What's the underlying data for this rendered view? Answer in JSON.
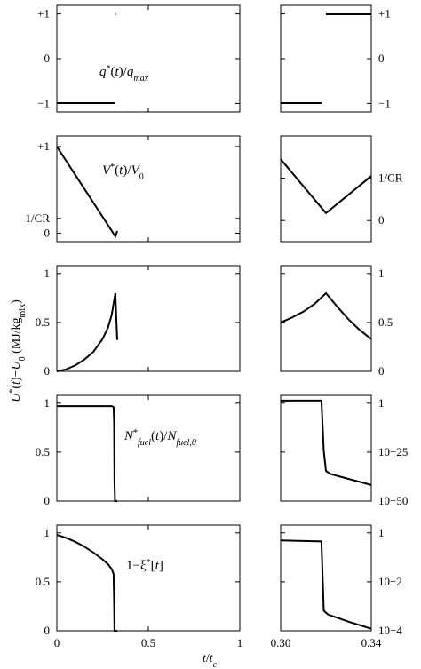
{
  "chart_data": [
    {
      "type": "line",
      "x": [
        0,
        0.32
      ],
      "series": [
        {
          "values": [
            -1,
            -1
          ]
        },
        {
          "x": [
            0.32,
            0.323
          ],
          "values": [
            1,
            1
          ]
        }
      ],
      "right_series": [
        {
          "x": [
            0.3,
            0.318
          ],
          "values": [
            -1,
            -1
          ]
        },
        {
          "x": [
            0.32,
            0.34
          ],
          "values": [
            1,
            1
          ]
        }
      ],
      "ylim": [
        -1.2,
        1.2
      ],
      "yticks": [
        "+1",
        "0",
        "−1"
      ],
      "label": "q*(t)/q_max"
    },
    {
      "type": "line",
      "x": [
        0,
        0.32
      ],
      "series": [
        {
          "x": [
            0,
            0.32,
            0.33
          ],
          "values": [
            1.0,
            0.0,
            0.06
          ]
        }
      ],
      "right_series": [
        {
          "x": [
            0.3,
            0.32,
            0.34
          ],
          "values": [
            0.78,
            0.27,
            0.62
          ]
        }
      ],
      "yticks_left": [
        "+1",
        "1/CR",
        "0"
      ],
      "yticks_right": [
        "1/CR",
        "0"
      ],
      "label": "V*(t)/V_0"
    },
    {
      "type": "line",
      "series": [
        {
          "x": [
            0,
            0.05,
            0.1,
            0.15,
            0.2,
            0.25,
            0.28,
            0.3,
            0.32,
            0.325,
            0.33
          ],
          "values": [
            0.0,
            0.02,
            0.06,
            0.12,
            0.2,
            0.33,
            0.45,
            0.58,
            0.8,
            0.55,
            0.32
          ]
        }
      ],
      "right_series": [
        {
          "x": [
            0.3,
            0.305,
            0.31,
            0.315,
            0.32,
            0.325,
            0.33,
            0.335,
            0.34
          ],
          "values": [
            0.5,
            0.55,
            0.61,
            0.69,
            0.8,
            0.66,
            0.53,
            0.42,
            0.33
          ]
        }
      ],
      "ylim": [
        0,
        1
      ],
      "yticks": [
        "1",
        "0.5",
        "0"
      ]
    },
    {
      "type": "line",
      "series": [
        {
          "x": [
            0,
            0.3,
            0.31,
            0.313,
            0.315,
            0.318,
            0.33
          ],
          "values": [
            0.97,
            0.97,
            0.96,
            0.8,
            0.2,
            0.0,
            0.0
          ]
        }
      ],
      "right_series": [
        {
          "x": [
            0.3,
            0.318,
            0.319,
            0.32,
            0.322,
            0.34
          ],
          "values": [
            1.0,
            1.0,
            0.5,
            0.3,
            0.27,
            0.16
          ]
        }
      ],
      "ylim": [
        0,
        1
      ],
      "yticks_left": [
        "1",
        "0.5",
        "0"
      ],
      "yticks_right": [
        "1",
        "10−25",
        "10−50"
      ],
      "label": "N*_fuel(t)/N_fuel,0"
    },
    {
      "type": "line",
      "series": [
        {
          "x": [
            0,
            0.05,
            0.1,
            0.15,
            0.2,
            0.25,
            0.28,
            0.3,
            0.31,
            0.313,
            0.315,
            0.33
          ],
          "values": [
            0.98,
            0.95,
            0.91,
            0.86,
            0.8,
            0.73,
            0.68,
            0.63,
            0.58,
            0.3,
            0.0,
            0.0
          ]
        }
      ],
      "right_series": [
        {
          "x": [
            0.3,
            0.318,
            0.319,
            0.321,
            0.325,
            0.33,
            0.34
          ],
          "values": [
            0.9,
            0.89,
            0.2,
            0.16,
            0.13,
            0.09,
            0.02
          ]
        }
      ],
      "ylim": [
        0,
        1
      ],
      "yticks_left": [
        "1",
        "0.5",
        "0"
      ],
      "yticks_right": [
        "1",
        "10−2",
        "10−4"
      ],
      "label": "1−ξ*[t]"
    }
  ],
  "axes": {
    "left_xticks": [
      "0",
      "0.5",
      "1"
    ],
    "right_xticks": [
      "0.30",
      "0.34"
    ],
    "left_xlim": [
      0,
      1
    ],
    "right_xlim": [
      0.3,
      0.34
    ],
    "xlabel": "t/t_c",
    "ylabel": "U*(t)−U_0 (MJ/kg_mix)"
  },
  "style": {
    "line_color": "#000000",
    "frame_color": "#000000"
  }
}
